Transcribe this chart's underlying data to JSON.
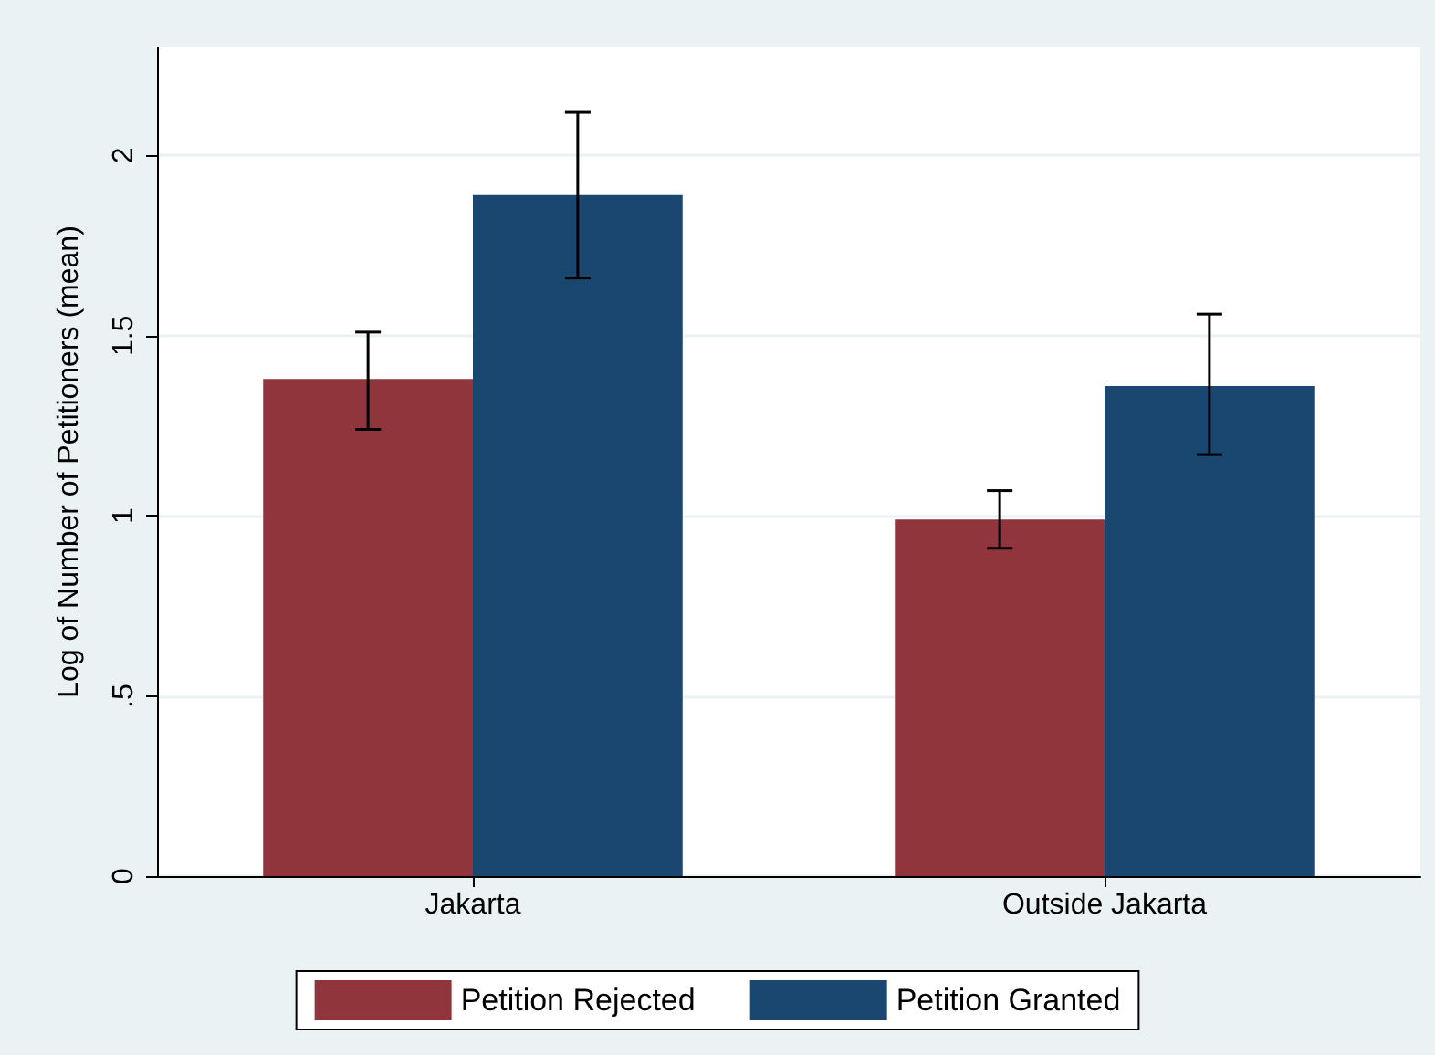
{
  "chart_data": {
    "type": "bar",
    "ylabel": "Log of Number of Petitioners (mean)",
    "categories": [
      "Jakarta",
      "Outside Jakarta"
    ],
    "series": [
      {
        "name": "Petition Rejected",
        "color": "#90353b",
        "values": [
          1.38,
          0.99
        ],
        "errors": [
          [
            1.24,
            1.51
          ],
          [
            0.91,
            1.07
          ]
        ]
      },
      {
        "name": "Petition Granted",
        "color": "#1a476f",
        "values": [
          1.89,
          1.36
        ],
        "errors": [
          [
            1.66,
            2.12
          ],
          [
            1.17,
            1.56
          ]
        ]
      }
    ],
    "ylim": [
      0,
      2.3
    ],
    "yticks": [
      0,
      {
        "value": 0.5,
        "label": ".5"
      },
      1,
      1.5,
      2
    ],
    "grid": "y",
    "legend": "bottom"
  }
}
